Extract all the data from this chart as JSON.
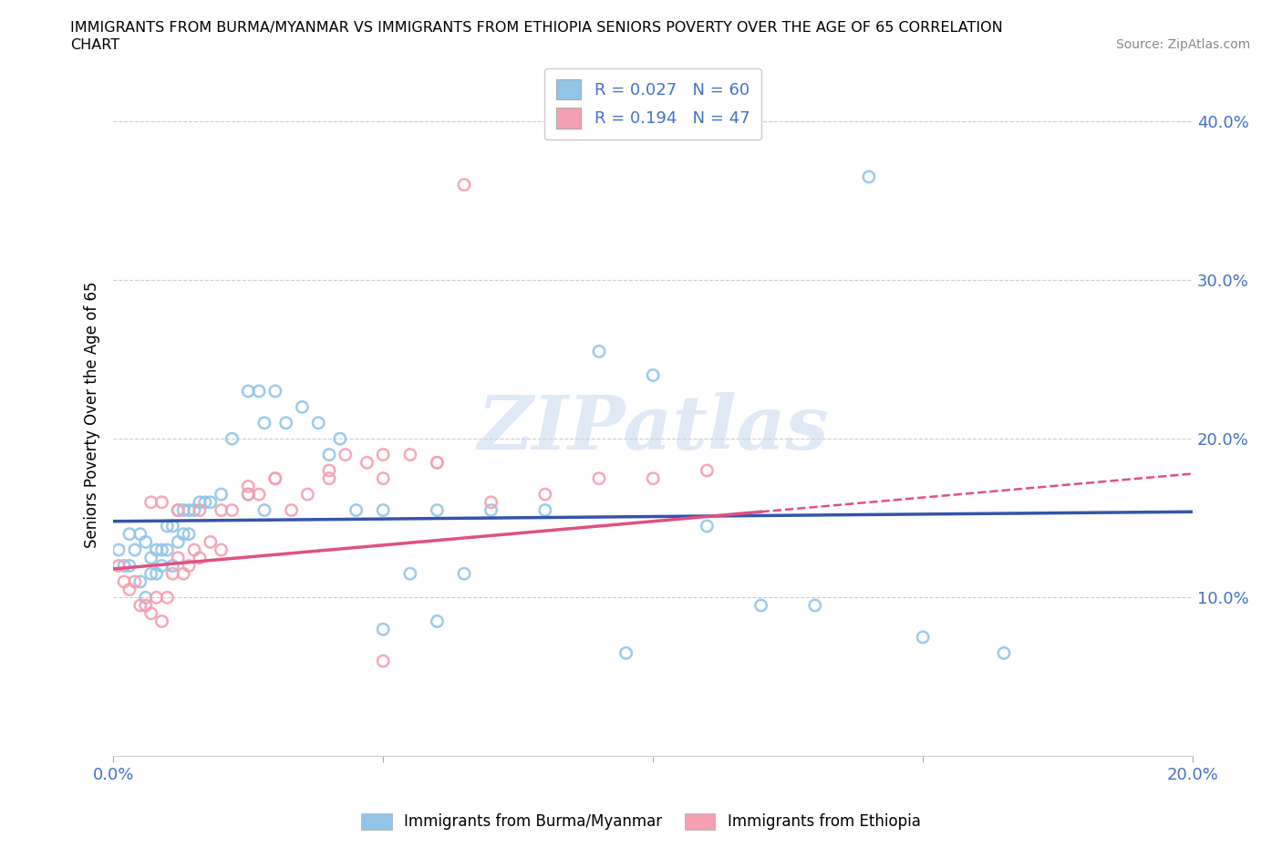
{
  "title_line1": "IMMIGRANTS FROM BURMA/MYANMAR VS IMMIGRANTS FROM ETHIOPIA SENIORS POVERTY OVER THE AGE OF 65 CORRELATION",
  "title_line2": "CHART",
  "source": "Source: ZipAtlas.com",
  "ylabel": "Seniors Poverty Over the Age of 65",
  "xlim": [
    0.0,
    0.2
  ],
  "ylim": [
    0.0,
    0.43
  ],
  "yticks": [
    0.1,
    0.2,
    0.3,
    0.4
  ],
  "ytick_labels": [
    "10.0%",
    "20.0%",
    "30.0%",
    "40.0%"
  ],
  "xticks": [
    0.0,
    0.05,
    0.1,
    0.15,
    0.2
  ],
  "xtick_labels": [
    "0.0%",
    "",
    "",
    "",
    "20.0%"
  ],
  "legend_text1": "R = 0.027   N = 60",
  "legend_text2": "R = 0.194   N = 47",
  "color_burma": "#92C5E8",
  "color_ethiopia": "#F4A0B0",
  "trendline_color_burma": "#3355AA",
  "trendline_color_ethiopia": "#E05080",
  "watermark": "ZIPatlas",
  "burma_x": [
    0.001,
    0.002,
    0.003,
    0.003,
    0.004,
    0.005,
    0.005,
    0.006,
    0.006,
    0.007,
    0.007,
    0.008,
    0.008,
    0.009,
    0.009,
    0.01,
    0.01,
    0.011,
    0.011,
    0.012,
    0.012,
    0.013,
    0.013,
    0.014,
    0.014,
    0.015,
    0.016,
    0.017,
    0.018,
    0.02,
    0.022,
    0.025,
    0.027,
    0.028,
    0.03,
    0.032,
    0.035,
    0.038,
    0.04,
    0.042,
    0.025,
    0.028,
    0.045,
    0.05,
    0.06,
    0.07,
    0.08,
    0.09,
    0.1,
    0.11,
    0.055,
    0.065,
    0.12,
    0.13,
    0.15,
    0.165,
    0.05,
    0.06,
    0.095,
    0.14
  ],
  "burma_y": [
    0.13,
    0.12,
    0.14,
    0.12,
    0.13,
    0.14,
    0.11,
    0.135,
    0.1,
    0.125,
    0.115,
    0.13,
    0.115,
    0.13,
    0.12,
    0.145,
    0.13,
    0.12,
    0.145,
    0.155,
    0.135,
    0.155,
    0.14,
    0.155,
    0.14,
    0.155,
    0.16,
    0.16,
    0.16,
    0.165,
    0.2,
    0.23,
    0.23,
    0.21,
    0.23,
    0.21,
    0.22,
    0.21,
    0.19,
    0.2,
    0.165,
    0.155,
    0.155,
    0.155,
    0.155,
    0.155,
    0.155,
    0.255,
    0.24,
    0.145,
    0.115,
    0.115,
    0.095,
    0.095,
    0.075,
    0.065,
    0.08,
    0.085,
    0.065,
    0.365
  ],
  "ethiopia_x": [
    0.001,
    0.002,
    0.003,
    0.004,
    0.005,
    0.006,
    0.007,
    0.008,
    0.009,
    0.01,
    0.011,
    0.012,
    0.013,
    0.014,
    0.015,
    0.016,
    0.018,
    0.02,
    0.022,
    0.025,
    0.027,
    0.03,
    0.033,
    0.036,
    0.04,
    0.043,
    0.047,
    0.05,
    0.055,
    0.06,
    0.007,
    0.009,
    0.012,
    0.016,
    0.02,
    0.025,
    0.03,
    0.04,
    0.05,
    0.06,
    0.07,
    0.08,
    0.09,
    0.1,
    0.11,
    0.05,
    0.065
  ],
  "ethiopia_y": [
    0.12,
    0.11,
    0.105,
    0.11,
    0.095,
    0.095,
    0.09,
    0.1,
    0.085,
    0.1,
    0.115,
    0.125,
    0.115,
    0.12,
    0.13,
    0.125,
    0.135,
    0.13,
    0.155,
    0.165,
    0.165,
    0.175,
    0.155,
    0.165,
    0.18,
    0.19,
    0.185,
    0.19,
    0.19,
    0.185,
    0.16,
    0.16,
    0.155,
    0.155,
    0.155,
    0.17,
    0.175,
    0.175,
    0.175,
    0.185,
    0.16,
    0.165,
    0.175,
    0.175,
    0.18,
    0.06,
    0.36
  ],
  "trendline_burma_y0": 0.148,
  "trendline_burma_y1": 0.154,
  "trendline_ethiopia_y0": 0.118,
  "trendline_ethiopia_y1": 0.178,
  "trendline_ethiopia_solid_end": 0.12,
  "trendline_ethiopia_dashed_start": 0.12
}
